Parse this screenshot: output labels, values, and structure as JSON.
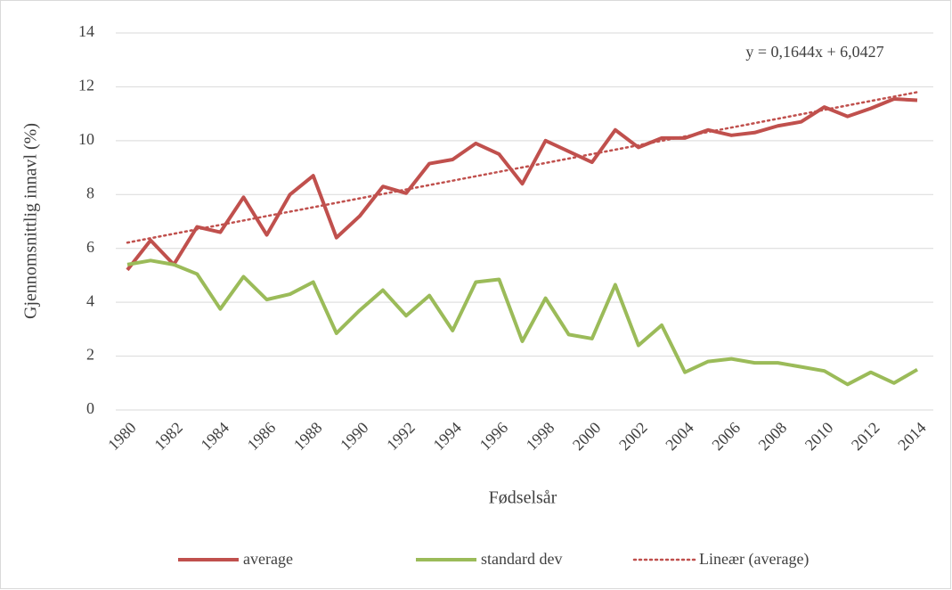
{
  "chart_data": {
    "type": "line",
    "y_label": "Gjennomsnittlig innavl (%)",
    "x_label": "Fødselsår",
    "x": [
      1980,
      1981,
      1982,
      1983,
      1984,
      1985,
      1986,
      1987,
      1988,
      1989,
      1990,
      1991,
      1992,
      1993,
      1994,
      1995,
      1996,
      1997,
      1998,
      1999,
      2000,
      2001,
      2002,
      2003,
      2004,
      2005,
      2006,
      2007,
      2008,
      2009,
      2010,
      2011,
      2012,
      2013,
      2014
    ],
    "xlim": [
      1980,
      2014
    ],
    "xticks": [
      1980,
      1982,
      1984,
      1986,
      1988,
      1990,
      1992,
      1994,
      1996,
      1998,
      2000,
      2002,
      2004,
      2006,
      2008,
      2010,
      2012,
      2014
    ],
    "ylim": [
      0,
      14
    ],
    "yticks": [
      0,
      2,
      4,
      6,
      8,
      10,
      12,
      14
    ],
    "grid": true,
    "legend": "bottom",
    "series": [
      {
        "name": "average",
        "color": "#c0504d",
        "values": [
          5.2,
          6.3,
          5.4,
          6.8,
          6.6,
          7.9,
          6.5,
          8.0,
          8.7,
          6.4,
          7.2,
          8.3,
          8.05,
          9.15,
          9.3,
          9.9,
          9.5,
          8.4,
          10.0,
          9.6,
          9.2,
          10.4,
          9.75,
          10.1,
          10.1,
          10.4,
          10.2,
          10.3,
          10.55,
          10.7,
          11.25,
          10.9,
          11.2,
          11.55,
          11.5
        ]
      },
      {
        "name": "standard dev",
        "color": "#9bbb59",
        "values": [
          5.4,
          5.55,
          5.4,
          5.05,
          3.75,
          4.95,
          4.1,
          4.3,
          4.75,
          2.85,
          3.7,
          4.45,
          3.5,
          4.25,
          2.95,
          4.75,
          4.85,
          2.55,
          4.15,
          2.8,
          2.65,
          4.65,
          2.4,
          3.15,
          1.4,
          1.8,
          1.9,
          1.75,
          1.75,
          1.6,
          1.45,
          0.95,
          1.4,
          1.0,
          1.5
        ]
      }
    ],
    "trendline": {
      "name": "Lineær (average)",
      "color": "#c0504d",
      "style": "dotted",
      "equation": "y = 0,1644x + 6,0427"
    }
  }
}
